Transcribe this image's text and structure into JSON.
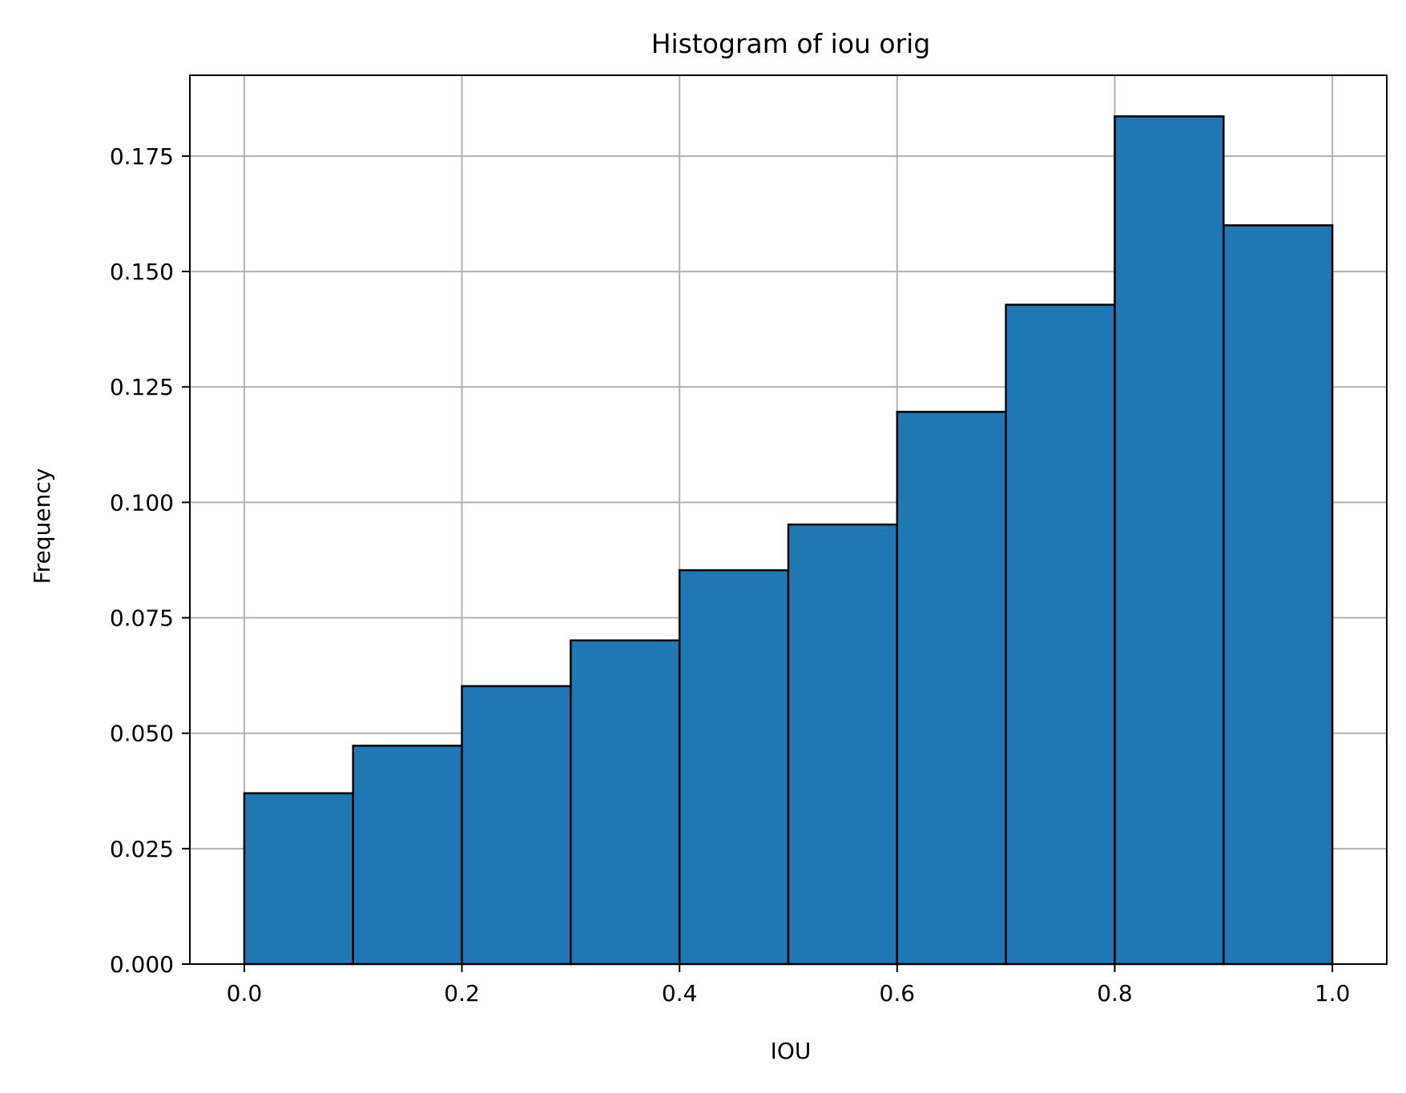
{
  "chart_data": {
    "type": "bar",
    "title": "Histogram of iou orig",
    "xlabel": "IOU",
    "ylabel": "Frequency",
    "bin_edges": [
      0.0,
      0.1,
      0.2,
      0.3,
      0.4,
      0.5,
      0.6,
      0.7,
      0.8,
      0.9,
      1.0
    ],
    "values": [
      0.037,
      0.0473,
      0.0602,
      0.0701,
      0.0853,
      0.0952,
      0.1196,
      0.1428,
      0.1836,
      0.16
    ],
    "xlim": [
      -0.05,
      1.05
    ],
    "ylim": [
      0,
      0.1925
    ],
    "xticks": [
      0.0,
      0.2,
      0.4,
      0.6,
      0.8,
      1.0
    ],
    "xtick_labels": [
      "0.0",
      "0.2",
      "0.4",
      "0.6",
      "0.8",
      "1.0"
    ],
    "yticks": [
      0.0,
      0.025,
      0.05,
      0.075,
      0.1,
      0.125,
      0.15,
      0.175
    ],
    "ytick_labels": [
      "0.000",
      "0.025",
      "0.050",
      "0.075",
      "0.100",
      "0.125",
      "0.150",
      "0.175"
    ],
    "grid": true,
    "legend": "none",
    "bar_color": "#1f77b4",
    "edge_color": "#000000",
    "grid_color": "#b0b0b0"
  }
}
